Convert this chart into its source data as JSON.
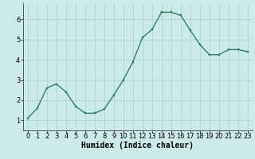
{
  "x": [
    0,
    1,
    2,
    3,
    4,
    5,
    6,
    7,
    8,
    9,
    10,
    11,
    12,
    13,
    14,
    15,
    16,
    17,
    18,
    19,
    20,
    21,
    22,
    23
  ],
  "y": [
    1.1,
    1.6,
    2.6,
    2.8,
    2.4,
    1.7,
    1.35,
    1.35,
    1.55,
    2.25,
    3.0,
    3.9,
    5.1,
    5.5,
    6.35,
    6.35,
    6.2,
    5.45,
    4.75,
    4.25,
    4.25,
    4.5,
    4.5,
    4.4
  ],
  "xlabel": "Humidex (Indice chaleur)",
  "xlim": [
    -0.5,
    23.5
  ],
  "ylim": [
    0.5,
    6.8
  ],
  "yticks": [
    1,
    2,
    3,
    4,
    5,
    6
  ],
  "xticks": [
    0,
    1,
    2,
    3,
    4,
    5,
    6,
    7,
    8,
    9,
    10,
    11,
    12,
    13,
    14,
    15,
    16,
    17,
    18,
    19,
    20,
    21,
    22,
    23
  ],
  "line_color": "#2e7d6e",
  "marker_color": "#2e7d6e",
  "bg_color": "#cdeaea",
  "grid_color": "#aacfcf",
  "xlabel_fontsize": 7,
  "tick_fontsize": 6,
  "line_width": 1.0,
  "marker_size": 2.0
}
